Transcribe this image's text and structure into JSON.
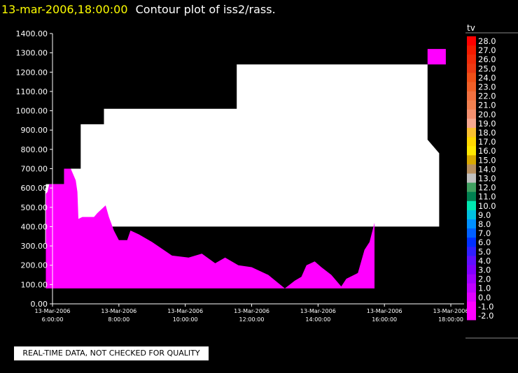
{
  "header": {
    "timestamp": "13-mar-2006,18:00:00",
    "title": "Contour plot of iss2/rass."
  },
  "footer": {
    "quality_note": "REAL-TIME DATA, NOT CHECKED FOR QUALITY"
  },
  "chart_data": {
    "type": "heatmap",
    "title": "Contour plot of iss2/rass.",
    "xlabel": "",
    "ylabel": "",
    "ylim": [
      0,
      1400
    ],
    "yticks": [
      "0.00",
      "100.00",
      "200.00",
      "300.00",
      "400.00",
      "500.00",
      "600.00",
      "700.00",
      "800.00",
      "900.00",
      "1000.00",
      "1100.00",
      "1200.00",
      "1300.00",
      "1400.00"
    ],
    "xticks": [
      {
        "t": 6,
        "date": "13-Mar-2006",
        "time": "6:00:00"
      },
      {
        "t": 8,
        "date": "13-Mar-2006",
        "time": "8:00:00"
      },
      {
        "t": 10,
        "date": "13-Mar-2006",
        "time": "10:00:00"
      },
      {
        "t": 12,
        "date": "13-Mar-2006",
        "time": "12:00:00"
      },
      {
        "t": 14,
        "date": "13-Mar-2006",
        "time": "14:00:00"
      },
      {
        "t": 16,
        "date": "13-Mar-2006",
        "time": "16:00:00"
      },
      {
        "t": 18,
        "date": "13-Mar-2006",
        "time": "18:00:00"
      }
    ],
    "xlim": [
      6,
      18.4
    ],
    "colors": {
      "no_data": "#000000",
      "outside_range": "#ffffff",
      "low_value": "#ff00ff"
    },
    "white_region": [
      [
        5.8,
        620
      ],
      [
        6.35,
        620
      ],
      [
        6.35,
        700
      ],
      [
        6.85,
        700
      ],
      [
        6.85,
        930
      ],
      [
        7.55,
        930
      ],
      [
        7.55,
        1010
      ],
      [
        11.55,
        1010
      ],
      [
        11.55,
        1240
      ],
      [
        17.3,
        1240
      ],
      [
        17.3,
        850
      ],
      [
        17.65,
        780
      ],
      [
        17.65,
        400
      ],
      [
        5.8,
        400
      ]
    ],
    "magenta_profile": [
      [
        5.8,
        570
      ],
      [
        5.85,
        580
      ],
      [
        5.9,
        620
      ],
      [
        6.35,
        620
      ],
      [
        6.35,
        700
      ],
      [
        6.55,
        700
      ],
      [
        6.7,
        640
      ],
      [
        6.75,
        580
      ],
      [
        6.78,
        440
      ],
      [
        6.9,
        450
      ],
      [
        7.25,
        450
      ],
      [
        7.35,
        470
      ],
      [
        7.6,
        510
      ],
      [
        7.7,
        450
      ],
      [
        7.85,
        380
      ],
      [
        8.0,
        330
      ],
      [
        8.25,
        330
      ],
      [
        8.35,
        380
      ],
      [
        8.6,
        360
      ],
      [
        9.0,
        320
      ],
      [
        9.6,
        250
      ],
      [
        10.1,
        240
      ],
      [
        10.5,
        260
      ],
      [
        10.9,
        210
      ],
      [
        11.2,
        240
      ],
      [
        11.6,
        200
      ],
      [
        12.0,
        190
      ],
      [
        12.5,
        150
      ],
      [
        13.0,
        80
      ],
      [
        13.3,
        120
      ],
      [
        13.5,
        140
      ],
      [
        13.65,
        200
      ],
      [
        13.9,
        220
      ],
      [
        14.1,
        190
      ],
      [
        14.4,
        150
      ],
      [
        14.7,
        90
      ],
      [
        14.85,
        130
      ],
      [
        15.2,
        160
      ],
      [
        15.4,
        280
      ],
      [
        15.55,
        320
      ],
      [
        15.7,
        420
      ],
      [
        15.7,
        80
      ],
      [
        5.8,
        80
      ]
    ],
    "magenta_patch": [
      [
        17.3,
        1320
      ],
      [
        17.85,
        1320
      ],
      [
        17.85,
        1240
      ],
      [
        17.3,
        1240
      ]
    ],
    "white_edge": [
      [
        5.78,
        600
      ],
      [
        5.8,
        600
      ],
      [
        5.8,
        310
      ],
      [
        5.78,
        310
      ]
    ],
    "colorbar": {
      "title": "tv",
      "levels": [
        {
          "label": "28.0",
          "color": "#ff0000"
        },
        {
          "label": "27.0",
          "color": "#f41b00"
        },
        {
          "label": "26.0",
          "color": "#f02c0a"
        },
        {
          "label": "25.0",
          "color": "#ec3a13"
        },
        {
          "label": "24.0",
          "color": "#f05018"
        },
        {
          "label": "23.0",
          "color": "#f06028"
        },
        {
          "label": "22.0",
          "color": "#f07040"
        },
        {
          "label": "21.0",
          "color": "#f08050"
        },
        {
          "label": "20.0",
          "color": "#f39070"
        },
        {
          "label": "19.0",
          "color": "#f6a890"
        },
        {
          "label": "18.0",
          "color": "#fac030"
        },
        {
          "label": "17.0",
          "color": "#ffd700"
        },
        {
          "label": "16.0",
          "color": "#ffe800"
        },
        {
          "label": "15.0",
          "color": "#d8a800"
        },
        {
          "label": "14.0",
          "color": "#b89060"
        },
        {
          "label": "13.0",
          "color": "#c0c0c0"
        },
        {
          "label": "12.0",
          "color": "#40a060"
        },
        {
          "label": "11.0",
          "color": "#008050"
        },
        {
          "label": "10.0",
          "color": "#00e8b0"
        },
        {
          "label": "9.0",
          "color": "#00c0e0"
        },
        {
          "label": "8.0",
          "color": "#0090ff"
        },
        {
          "label": "7.0",
          "color": "#0060ff"
        },
        {
          "label": "6.0",
          "color": "#0030ff"
        },
        {
          "label": "5.0",
          "color": "#3020ff"
        },
        {
          "label": "4.0",
          "color": "#6010ff"
        },
        {
          "label": "3.0",
          "color": "#8000ff"
        },
        {
          "label": "2.0",
          "color": "#a000ff"
        },
        {
          "label": "1.0",
          "color": "#c000ff"
        },
        {
          "label": "0.0",
          "color": "#e000ff"
        },
        {
          "label": "-1.0",
          "color": "#ff00ff"
        },
        {
          "label": "-2.0",
          "color": "#ff00ff"
        }
      ]
    }
  }
}
